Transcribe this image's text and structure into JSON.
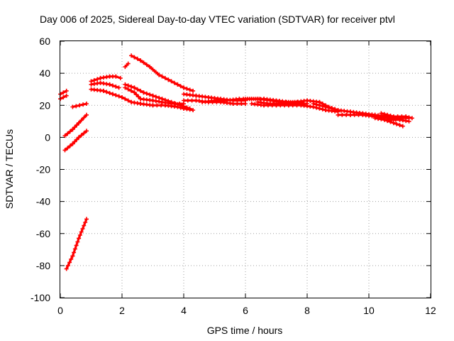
{
  "chart_data": {
    "type": "scatter",
    "title": "Day 006 of 2025, Sidereal Day-to-day VTEC variation (SDTVAR) for receiver ptvl",
    "xlabel": "GPS time / hours",
    "ylabel": "SDTVAR / TECUs",
    "xlim": [
      0,
      12
    ],
    "ylim": [
      -100,
      60
    ],
    "x_ticks": [
      0,
      2,
      4,
      6,
      8,
      10,
      12
    ],
    "y_ticks": [
      -100,
      -80,
      -60,
      -40,
      -20,
      0,
      20,
      40,
      60
    ],
    "x_tick_labels": [
      "0",
      "2",
      "4",
      "6",
      "8",
      "10",
      "12"
    ],
    "y_tick_labels": [
      "-100",
      "-80",
      "-60",
      "-40",
      "-20",
      "0",
      "20",
      "40",
      "60"
    ],
    "grid": true,
    "legend": "none",
    "marker_color": "#ff0000",
    "series": [
      {
        "points": [
          [
            0.0,
            27
          ],
          [
            0.2,
            29
          ]
        ]
      },
      {
        "points": [
          [
            0.0,
            24
          ],
          [
            0.2,
            26
          ]
        ]
      },
      {
        "points": [
          [
            0.15,
            1
          ],
          [
            0.4,
            5
          ],
          [
            0.6,
            9
          ],
          [
            0.85,
            14
          ]
        ]
      },
      {
        "points": [
          [
            0.15,
            -8
          ],
          [
            0.4,
            -4
          ],
          [
            0.6,
            0
          ],
          [
            0.85,
            4
          ]
        ]
      },
      {
        "points": [
          [
            0.2,
            -82
          ],
          [
            0.4,
            -74
          ],
          [
            0.6,
            -63
          ],
          [
            0.85,
            -51
          ]
        ]
      },
      {
        "points": [
          [
            0.4,
            19
          ],
          [
            0.85,
            21
          ]
        ]
      },
      {
        "points": [
          [
            1.0,
            35
          ],
          [
            1.3,
            37
          ],
          [
            1.6,
            38
          ],
          [
            1.8,
            38
          ],
          [
            1.95,
            37
          ]
        ]
      },
      {
        "points": [
          [
            1.0,
            33
          ],
          [
            1.3,
            34
          ],
          [
            1.6,
            33
          ],
          [
            1.9,
            31
          ]
        ]
      },
      {
        "points": [
          [
            1.0,
            30
          ],
          [
            1.4,
            29
          ],
          [
            1.7,
            27
          ],
          [
            2.0,
            25
          ],
          [
            2.3,
            22
          ],
          [
            2.6,
            21
          ],
          [
            3.0,
            20
          ],
          [
            3.4,
            20
          ],
          [
            3.8,
            19
          ],
          [
            4.0,
            18
          ],
          [
            4.3,
            17
          ]
        ]
      },
      {
        "points": [
          [
            2.1,
            44
          ],
          [
            2.2,
            46
          ]
        ]
      },
      {
        "points": [
          [
            2.3,
            51
          ],
          [
            2.6,
            48
          ],
          [
            2.9,
            44
          ],
          [
            3.2,
            39
          ],
          [
            3.5,
            36
          ],
          [
            3.8,
            33
          ],
          [
            4.0,
            31
          ],
          [
            4.3,
            29
          ]
        ]
      },
      {
        "points": [
          [
            2.1,
            33
          ],
          [
            2.4,
            31
          ],
          [
            2.7,
            28
          ],
          [
            3.0,
            26
          ],
          [
            3.3,
            24
          ],
          [
            3.6,
            22
          ],
          [
            3.9,
            20
          ],
          [
            4.2,
            18
          ]
        ]
      },
      {
        "points": [
          [
            2.1,
            31
          ],
          [
            2.4,
            28
          ],
          [
            2.6,
            24
          ],
          [
            3.0,
            23
          ],
          [
            3.3,
            22
          ],
          [
            3.6,
            21
          ],
          [
            4.0,
            21
          ]
        ]
      },
      {
        "points": [
          [
            4.0,
            27
          ],
          [
            4.4,
            26
          ],
          [
            4.8,
            25
          ],
          [
            5.2,
            24
          ],
          [
            5.6,
            23
          ],
          [
            6.0,
            23
          ]
        ]
      },
      {
        "points": [
          [
            4.0,
            23
          ],
          [
            4.4,
            23
          ],
          [
            4.8,
            22
          ],
          [
            5.2,
            22
          ],
          [
            5.6,
            21
          ],
          [
            6.0,
            21
          ]
        ]
      },
      {
        "points": [
          [
            4.6,
            22
          ],
          [
            5.0,
            23
          ],
          [
            5.4,
            23
          ],
          [
            5.8,
            24
          ],
          [
            6.2,
            24
          ],
          [
            6.6,
            24
          ],
          [
            7.0,
            23
          ],
          [
            7.4,
            22
          ],
          [
            7.8,
            22
          ]
        ]
      },
      {
        "points": [
          [
            6.0,
            24
          ],
          [
            6.4,
            24
          ],
          [
            6.8,
            23
          ],
          [
            7.2,
            22
          ],
          [
            7.6,
            22
          ],
          [
            8.0,
            23
          ],
          [
            8.4,
            22
          ],
          [
            8.7,
            19
          ],
          [
            9.0,
            17
          ]
        ]
      },
      {
        "points": [
          [
            6.2,
            21
          ],
          [
            6.6,
            20
          ],
          [
            7.0,
            20
          ],
          [
            7.4,
            20
          ],
          [
            7.8,
            20
          ],
          [
            8.2,
            19
          ],
          [
            8.6,
            17
          ],
          [
            9.0,
            16
          ]
        ]
      },
      {
        "points": [
          [
            6.4,
            22
          ],
          [
            6.8,
            21
          ],
          [
            7.2,
            21
          ],
          [
            7.6,
            21
          ],
          [
            8.0,
            21
          ]
        ]
      },
      {
        "points": [
          [
            8.2,
            21
          ],
          [
            8.6,
            19
          ],
          [
            9.0,
            17
          ],
          [
            9.4,
            16
          ],
          [
            9.8,
            15
          ],
          [
            10.2,
            14
          ],
          [
            10.6,
            13
          ],
          [
            11.0,
            12
          ],
          [
            11.3,
            12
          ]
        ]
      },
      {
        "points": [
          [
            9.0,
            14
          ],
          [
            9.4,
            14
          ],
          [
            9.8,
            14
          ],
          [
            10.2,
            13
          ],
          [
            10.6,
            12
          ],
          [
            11.0,
            12
          ]
        ]
      },
      {
        "points": [
          [
            10.2,
            12
          ],
          [
            10.5,
            11
          ],
          [
            10.8,
            9
          ],
          [
            11.1,
            7
          ]
        ]
      },
      {
        "points": [
          [
            10.4,
            15
          ],
          [
            10.8,
            13
          ],
          [
            11.2,
            13
          ],
          [
            11.4,
            12
          ]
        ]
      },
      {
        "points": [
          [
            10.6,
            11
          ],
          [
            11.0,
            11
          ],
          [
            11.3,
            10
          ]
        ]
      }
    ]
  }
}
